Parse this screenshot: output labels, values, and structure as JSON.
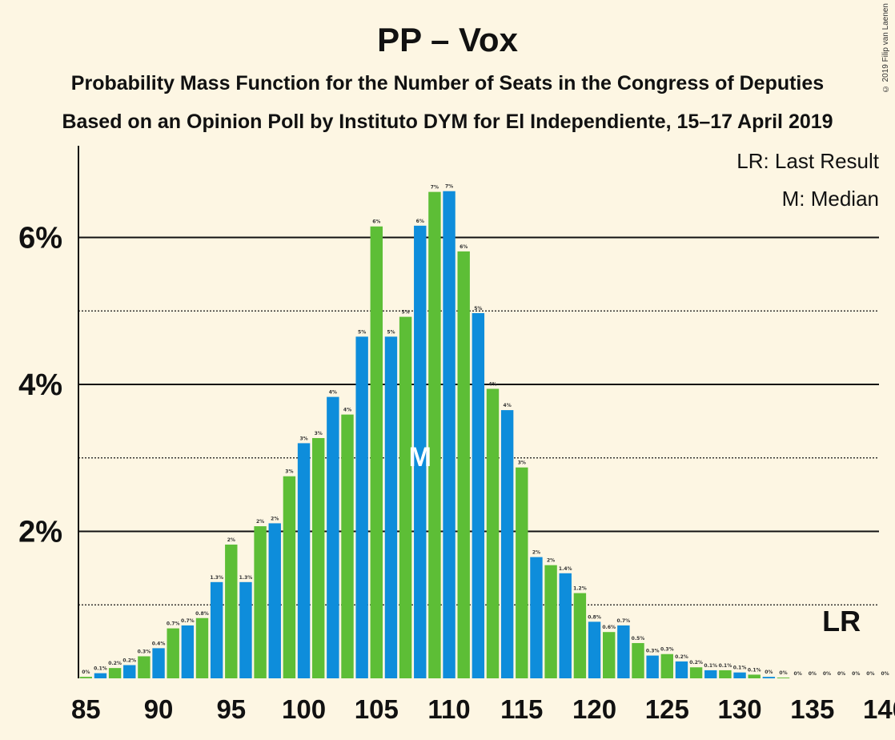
{
  "title": "PP – Vox",
  "subtitle1": "Probability Mass Function for the Number of Seats in the Congress of Deputies",
  "subtitle2": "Based on an Opinion Poll by Instituto DYM for El Independiente, 15–17 April 2019",
  "copyright": "© 2019 Filip van Laenen",
  "legend": {
    "last_result": "LR: Last Result",
    "median": "M: Median"
  },
  "colors": {
    "background": "#FDF6E3",
    "blue": "#0E8DDB",
    "green": "#5DBE36",
    "text": "#111111"
  },
  "chart_data": {
    "type": "bar",
    "xlabel": "",
    "ylabel": "",
    "xlim": [
      85,
      140
    ],
    "ylim": [
      0,
      7.2
    ],
    "x_ticks": [
      85,
      90,
      95,
      100,
      105,
      110,
      115,
      120,
      125,
      130,
      135,
      140
    ],
    "y_ticks": [
      {
        "value": 2,
        "label": "2%"
      },
      {
        "value": 4,
        "label": "4%"
      },
      {
        "value": 6,
        "label": "6%"
      }
    ],
    "minor_gridlines": [
      1,
      3,
      5
    ],
    "median": {
      "seats": 108,
      "label": "M"
    },
    "last_result": {
      "seats": 137,
      "label": "LR"
    },
    "bars": [
      {
        "seats": 85,
        "value": 0.02,
        "label": "0%"
      },
      {
        "seats": 86,
        "value": 0.07,
        "label": "0.1%"
      },
      {
        "seats": 87,
        "value": 0.14,
        "label": "0.2%"
      },
      {
        "seats": 88,
        "value": 0.18,
        "label": "0.2%"
      },
      {
        "seats": 89,
        "value": 0.3,
        "label": "0.3%"
      },
      {
        "seats": 90,
        "value": 0.41,
        "label": "0.4%"
      },
      {
        "seats": 91,
        "value": 0.68,
        "label": "0.7%"
      },
      {
        "seats": 92,
        "value": 0.72,
        "label": "0.7%"
      },
      {
        "seats": 93,
        "value": 0.82,
        "label": "0.8%"
      },
      {
        "seats": 94,
        "value": 1.31,
        "label": "1.3%"
      },
      {
        "seats": 95,
        "value": 1.82,
        "label": "2%"
      },
      {
        "seats": 96,
        "value": 1.31,
        "label": "1.3%"
      },
      {
        "seats": 97,
        "value": 2.07,
        "label": "2%"
      },
      {
        "seats": 98,
        "value": 2.11,
        "label": "2%"
      },
      {
        "seats": 99,
        "value": 2.75,
        "label": "3%"
      },
      {
        "seats": 100,
        "value": 3.2,
        "label": "3%"
      },
      {
        "seats": 101,
        "value": 3.27,
        "label": "3%"
      },
      {
        "seats": 102,
        "value": 3.83,
        "label": "4%"
      },
      {
        "seats": 103,
        "value": 3.59,
        "label": "4%"
      },
      {
        "seats": 104,
        "value": 4.65,
        "label": "5%"
      },
      {
        "seats": 105,
        "value": 6.15,
        "label": "6%"
      },
      {
        "seats": 106,
        "value": 4.65,
        "label": "5%"
      },
      {
        "seats": 107,
        "value": 4.92,
        "label": "5%"
      },
      {
        "seats": 108,
        "value": 6.16,
        "label": "6%"
      },
      {
        "seats": 109,
        "value": 6.62,
        "label": "7%"
      },
      {
        "seats": 110,
        "value": 6.63,
        "label": "7%"
      },
      {
        "seats": 111,
        "value": 5.81,
        "label": "6%"
      },
      {
        "seats": 112,
        "value": 4.97,
        "label": "5%"
      },
      {
        "seats": 113,
        "value": 3.94,
        "label": "4%"
      },
      {
        "seats": 114,
        "value": 3.65,
        "label": "4%"
      },
      {
        "seats": 115,
        "value": 2.87,
        "label": "3%"
      },
      {
        "seats": 116,
        "value": 1.65,
        "label": "2%"
      },
      {
        "seats": 117,
        "value": 1.54,
        "label": "2%"
      },
      {
        "seats": 118,
        "value": 1.43,
        "label": "1.4%"
      },
      {
        "seats": 119,
        "value": 1.16,
        "label": "1.2%"
      },
      {
        "seats": 120,
        "value": 0.77,
        "label": "0.8%"
      },
      {
        "seats": 121,
        "value": 0.63,
        "label": "0.6%"
      },
      {
        "seats": 122,
        "value": 0.72,
        "label": "0.7%"
      },
      {
        "seats": 123,
        "value": 0.48,
        "label": "0.5%"
      },
      {
        "seats": 124,
        "value": 0.31,
        "label": "0.3%"
      },
      {
        "seats": 125,
        "value": 0.33,
        "label": "0.3%"
      },
      {
        "seats": 126,
        "value": 0.23,
        "label": "0.2%"
      },
      {
        "seats": 127,
        "value": 0.15,
        "label": "0.2%"
      },
      {
        "seats": 128,
        "value": 0.11,
        "label": "0.1%"
      },
      {
        "seats": 129,
        "value": 0.11,
        "label": "0.1%"
      },
      {
        "seats": 130,
        "value": 0.08,
        "label": "0.1%"
      },
      {
        "seats": 131,
        "value": 0.05,
        "label": "0.1%"
      },
      {
        "seats": 132,
        "value": 0.02,
        "label": "0%"
      },
      {
        "seats": 133,
        "value": 0.01,
        "label": "0%"
      },
      {
        "seats": 134,
        "value": 0.0,
        "label": "0%"
      },
      {
        "seats": 135,
        "value": 0.0,
        "label": "0%"
      },
      {
        "seats": 136,
        "value": 0.0,
        "label": "0%"
      },
      {
        "seats": 137,
        "value": 0.0,
        "label": "0%"
      },
      {
        "seats": 138,
        "value": 0.0,
        "label": "0%"
      },
      {
        "seats": 139,
        "value": 0.0,
        "label": "0%"
      },
      {
        "seats": 140,
        "value": 0.0,
        "label": "0%"
      }
    ]
  }
}
